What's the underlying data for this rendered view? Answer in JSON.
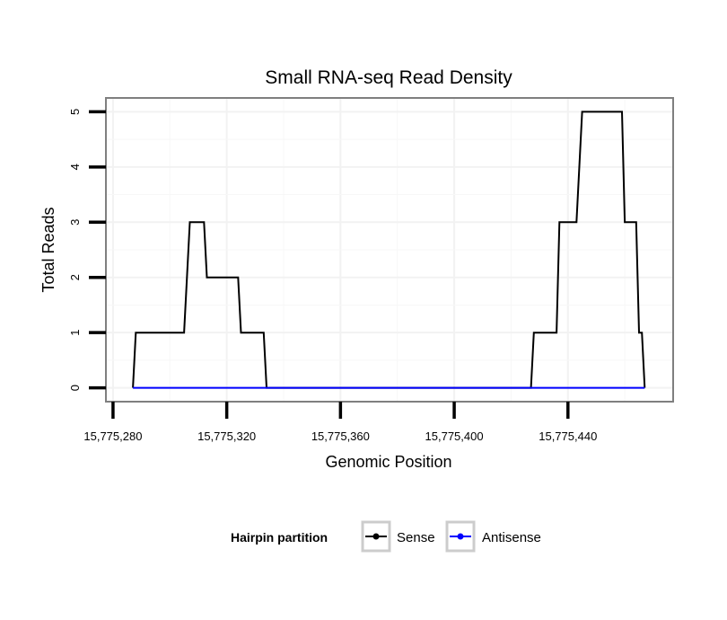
{
  "chart_data": {
    "type": "line",
    "title": "Small RNA-seq Read Density",
    "xlabel": "Genomic Position",
    "ylabel": "Total Reads",
    "xlim": [
      15775277.5,
      15775477
    ],
    "ylim": [
      -0.25,
      5.25
    ],
    "x_ticks": [
      {
        "value": 15775280,
        "label": "15,775,280"
      },
      {
        "value": 15775320,
        "label": "15,775,320"
      },
      {
        "value": 15775360,
        "label": "15,775,360"
      },
      {
        "value": 15775400,
        "label": "15,775,400"
      },
      {
        "value": 15775440,
        "label": "15,775,440"
      }
    ],
    "y_ticks": [
      {
        "value": 0,
        "label": "0"
      },
      {
        "value": 1,
        "label": "1"
      },
      {
        "value": 2,
        "label": "2"
      },
      {
        "value": 3,
        "label": "3"
      },
      {
        "value": 4,
        "label": "4"
      },
      {
        "value": 5,
        "label": "5"
      }
    ],
    "grid": true,
    "legend": {
      "title": "Hairpin partition",
      "position": "bottom"
    },
    "series": [
      {
        "name": "Sense",
        "color": "#000000",
        "points": [
          [
            15775287,
            0
          ],
          [
            15775288,
            1
          ],
          [
            15775305,
            1
          ],
          [
            15775307,
            3
          ],
          [
            15775312,
            3
          ],
          [
            15775313,
            2
          ],
          [
            15775324,
            2
          ],
          [
            15775325,
            1
          ],
          [
            15775333,
            1
          ],
          [
            15775334,
            0
          ],
          [
            15775427,
            0
          ],
          [
            15775428,
            1
          ],
          [
            15775436,
            1
          ],
          [
            15775437,
            3
          ],
          [
            15775443,
            3
          ],
          [
            15775445,
            5
          ],
          [
            15775459,
            5
          ],
          [
            15775460,
            3
          ],
          [
            15775464,
            3
          ],
          [
            15775465,
            1
          ],
          [
            15775466,
            1
          ],
          [
            15775467,
            0
          ]
        ]
      },
      {
        "name": "Antisense",
        "color": "#0000ff",
        "points": [
          [
            15775287,
            0
          ],
          [
            15775467,
            0
          ]
        ]
      }
    ]
  }
}
